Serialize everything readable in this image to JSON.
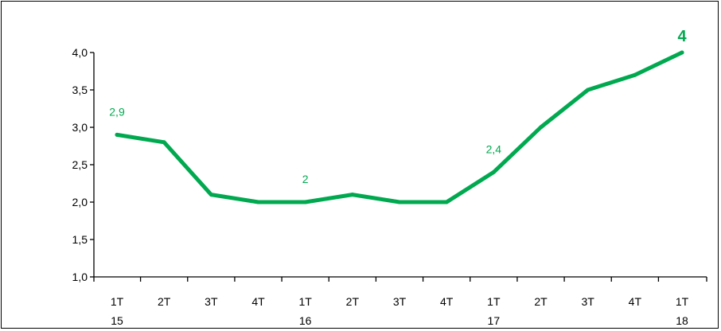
{
  "chart_data": {
    "type": "line",
    "title": "",
    "xlabel": "",
    "ylabel": "",
    "categories": [
      [
        "1T",
        "15"
      ],
      [
        "2T",
        ""
      ],
      [
        "3T",
        ""
      ],
      [
        "4T",
        ""
      ],
      [
        "1T",
        "16"
      ],
      [
        "2T",
        ""
      ],
      [
        "3T",
        ""
      ],
      [
        "4T",
        ""
      ],
      [
        "1T",
        "17"
      ],
      [
        "2T",
        ""
      ],
      [
        "3T",
        ""
      ],
      [
        "4T",
        ""
      ],
      [
        "1T",
        "18"
      ]
    ],
    "series": [
      {
        "values": [
          2.9,
          2.8,
          2.1,
          2.0,
          2.0,
          2.1,
          2.0,
          2.0,
          2.4,
          3.0,
          3.5,
          3.7,
          4.0
        ]
      }
    ],
    "ylim": [
      1.0,
      4.0
    ],
    "yticks": [
      "1,0",
      "1,5",
      "2,0",
      "2,5",
      "3,0",
      "3,5",
      "4,0"
    ],
    "ytick_values": [
      1.0,
      1.5,
      2.0,
      2.5,
      3.0,
      3.5,
      4.0
    ],
    "data_labels": [
      {
        "index": 0,
        "text": "2,9",
        "emphasis": false
      },
      {
        "index": 4,
        "text": "2",
        "emphasis": false
      },
      {
        "index": 8,
        "text": "2,4",
        "emphasis": false
      },
      {
        "index": 12,
        "text": "4",
        "emphasis": true
      }
    ],
    "grid": false,
    "legend": "none",
    "line_color": "#00a94f"
  }
}
